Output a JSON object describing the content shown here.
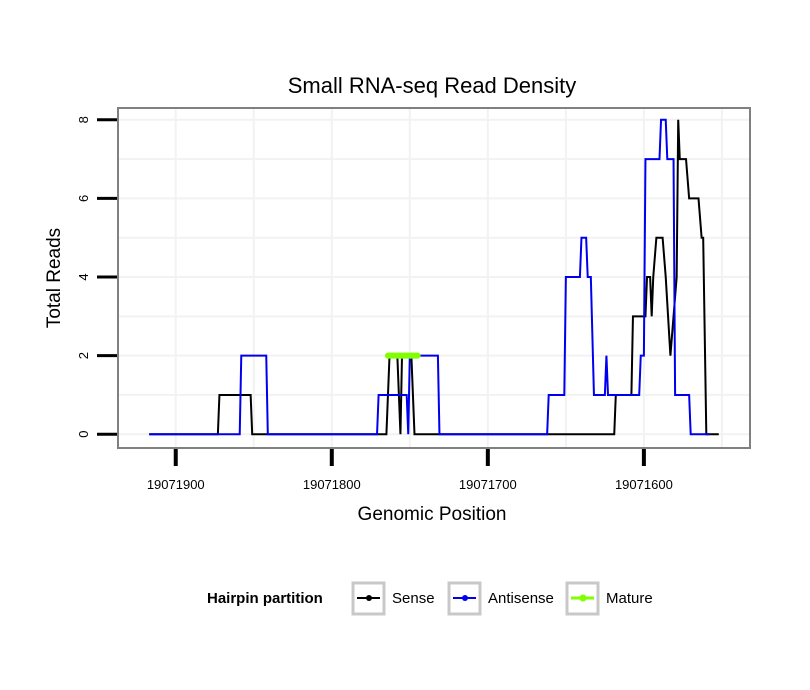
{
  "chart_data": {
    "type": "line",
    "title": "Small RNA-seq Read Density",
    "xlabel": "Genomic Position",
    "ylabel": "Total Reads",
    "xlim": [
      19071937,
      19071532
    ],
    "ylim": [
      -0.35,
      8.3
    ],
    "x_reversed": true,
    "x_ticks": [
      19071900,
      19071800,
      19071700,
      19071600
    ],
    "x_tick_labels": [
      "19071900",
      "19071800",
      "19071700",
      "19071600"
    ],
    "y_ticks": [
      0,
      2,
      4,
      6,
      8
    ],
    "y_tick_labels": [
      "0",
      "2",
      "4",
      "6",
      "8"
    ],
    "grid": true,
    "legend": {
      "title": "Hairpin partition",
      "position": "bottom",
      "entries": [
        "Sense",
        "Antisense",
        "Mature"
      ]
    },
    "series": [
      {
        "name": "Sense",
        "color": "#000000",
        "points": [
          [
            19071917,
            0
          ],
          [
            19071873,
            0
          ],
          [
            19071872,
            1
          ],
          [
            19071852,
            1
          ],
          [
            19071851,
            0
          ],
          [
            19071765,
            0
          ],
          [
            19071763,
            2
          ],
          [
            19071758,
            2
          ],
          [
            19071756,
            0
          ],
          [
            19071755,
            2
          ],
          [
            19071749,
            2
          ],
          [
            19071747,
            0
          ],
          [
            19071619,
            0
          ],
          [
            19071618,
            1
          ],
          [
            19071608,
            1
          ],
          [
            19071607,
            3
          ],
          [
            19071599,
            3
          ],
          [
            19071598,
            4
          ],
          [
            19071596,
            4
          ],
          [
            19071595,
            3
          ],
          [
            19071594,
            4
          ],
          [
            19071592,
            5
          ],
          [
            19071588,
            5
          ],
          [
            19071586,
            4
          ],
          [
            19071583,
            2
          ],
          [
            19071581,
            3
          ],
          [
            19071579,
            4
          ],
          [
            19071578,
            8
          ],
          [
            19071577,
            7
          ],
          [
            19071573,
            7
          ],
          [
            19071571,
            6
          ],
          [
            19071565,
            6
          ],
          [
            19071563,
            5
          ],
          [
            19071562,
            5
          ],
          [
            19071560,
            0
          ],
          [
            19071552,
            0
          ]
        ]
      },
      {
        "name": "Antisense",
        "color": "#0000ee",
        "points": [
          [
            19071917,
            0
          ],
          [
            19071859,
            0
          ],
          [
            19071858,
            2
          ],
          [
            19071842,
            2
          ],
          [
            19071841,
            0
          ],
          [
            19071771,
            0
          ],
          [
            19071770,
            1
          ],
          [
            19071752,
            1
          ],
          [
            19071751,
            0
          ],
          [
            19071750,
            2
          ],
          [
            19071732,
            2
          ],
          [
            19071731,
            0
          ],
          [
            19071662,
            0
          ],
          [
            19071661,
            1
          ],
          [
            19071651,
            1
          ],
          [
            19071650,
            4
          ],
          [
            19071641,
            4
          ],
          [
            19071640,
            5
          ],
          [
            19071637,
            5
          ],
          [
            19071636,
            4
          ],
          [
            19071634,
            4
          ],
          [
            19071632,
            1
          ],
          [
            19071625,
            1
          ],
          [
            19071624,
            2
          ],
          [
            19071623,
            1
          ],
          [
            19071616,
            1
          ],
          [
            19071614,
            1
          ],
          [
            19071603,
            1
          ],
          [
            19071602,
            2
          ],
          [
            19071600,
            2
          ],
          [
            19071599,
            7
          ],
          [
            19071590,
            7
          ],
          [
            19071589,
            8
          ],
          [
            19071586,
            8
          ],
          [
            19071585,
            7
          ],
          [
            19071581,
            7
          ],
          [
            19071580,
            1
          ],
          [
            19071571,
            1
          ],
          [
            19071570,
            0
          ],
          [
            19071558,
            0
          ]
        ]
      },
      {
        "name": "Mature",
        "color": "#7fff00",
        "points": [
          [
            19071764,
            2
          ],
          [
            19071745,
            2
          ]
        ]
      }
    ]
  }
}
